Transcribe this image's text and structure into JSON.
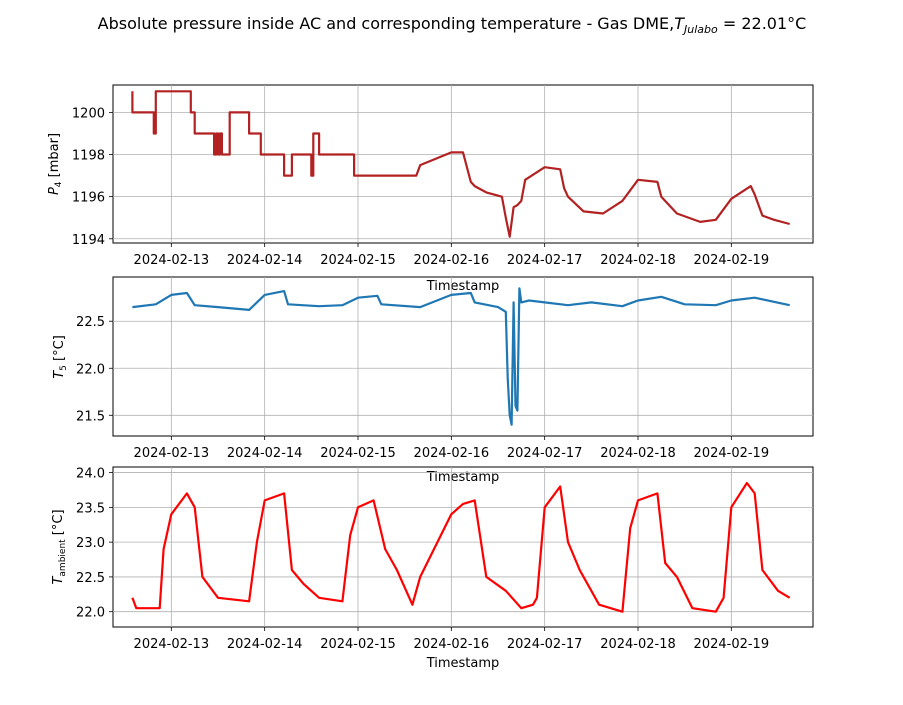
{
  "figure": {
    "title": "Absolute pressure inside AC and corresponding temperature - Gas DME,",
    "title_math_var": "T",
    "title_math_sub": "Julabo",
    "title_math_tail": " = 22.01°C"
  },
  "chart_data": [
    {
      "type": "line",
      "ylabel_var": "P",
      "ylabel_sub": "4",
      "ylabel_unit": " [mbar]",
      "xlabel": "Timestamp",
      "color": "#b22222",
      "grid": true,
      "ylim": [
        1193.8,
        1201.3
      ],
      "yticks": [
        1194,
        1196,
        1198,
        1200
      ],
      "xlim": [
        "2024-02-12 09:00",
        "2024-02-19 21:00"
      ],
      "xticks": [
        "2024-02-13",
        "2024-02-14",
        "2024-02-15",
        "2024-02-16",
        "2024-02-17",
        "2024-02-18",
        "2024-02-19"
      ],
      "series": [
        {
          "x": [
            "2024-02-12 14:00",
            "2024-02-12 14:00",
            "2024-02-12 14:05",
            "2024-02-12 14:05",
            "2024-02-12 19:30",
            "2024-02-12 19:30",
            "2024-02-12 20:00",
            "2024-02-12 20:00",
            "2024-02-13 05:00",
            "2024-02-13 05:00",
            "2024-02-13 06:00",
            "2024-02-13 06:00",
            "2024-02-13 11:00",
            "2024-02-13 11:00",
            "2024-02-13 11:30",
            "2024-02-13 11:30",
            "2024-02-13 12:00",
            "2024-02-13 12:00",
            "2024-02-13 12:30",
            "2024-02-13 12:30",
            "2024-02-13 13:00",
            "2024-02-13 13:00",
            "2024-02-13 14:00",
            "2024-02-13 14:00",
            "2024-02-13 15:00",
            "2024-02-13 15:00",
            "2024-02-13 20:00",
            "2024-02-13 20:00",
            "2024-02-13 23:00",
            "2024-02-13 23:00",
            "2024-02-14 05:00",
            "2024-02-14 05:00",
            "2024-02-14 06:00",
            "2024-02-14 06:00",
            "2024-02-14 07:00",
            "2024-02-14 07:00",
            "2024-02-14 12:00",
            "2024-02-14 12:00",
            "2024-02-14 12:30",
            "2024-02-14 12:30",
            "2024-02-14 13:00",
            "2024-02-14 13:00",
            "2024-02-14 14:00",
            "2024-02-14 14:00",
            "2024-02-14 23:00",
            "2024-02-14 23:00",
            "2024-02-15 00:00",
            "2024-02-15 00:00",
            "2024-02-15 05:00",
            "2024-02-15 05:00",
            "2024-02-15 06:00",
            "2024-02-15 06:00",
            "2024-02-15 14:00",
            "2024-02-15 15:00",
            "2024-02-15 15:00",
            "2024-02-15 16:00",
            "2024-02-16 00:00",
            "2024-02-16 03:00",
            "2024-02-16 05:00",
            "2024-02-16 06:00",
            "2024-02-16 09:00",
            "2024-02-16 13:00",
            "2024-02-16 14:00",
            "2024-02-16 15:00",
            "2024-02-16 16:00",
            "2024-02-16 17:00",
            "2024-02-16 18:00",
            "2024-02-16 19:00",
            "2024-02-17 00:00",
            "2024-02-17 04:00",
            "2024-02-17 05:00",
            "2024-02-17 06:00",
            "2024-02-17 10:00",
            "2024-02-17 15:00",
            "2024-02-17 20:00",
            "2024-02-18 00:00",
            "2024-02-18 05:00",
            "2024-02-18 06:00",
            "2024-02-18 10:00",
            "2024-02-18 16:00",
            "2024-02-18 20:00",
            "2024-02-19 00:00",
            "2024-02-19 05:00",
            "2024-02-19 06:00",
            "2024-02-19 08:00",
            "2024-02-19 11:00",
            "2024-02-19 15:00"
          ],
          "y": [
            1201,
            1200,
            1200,
            1200,
            1200,
            1199,
            1199,
            1201,
            1201,
            1200,
            1200,
            1199,
            1199,
            1198,
            1198,
            1199,
            1199,
            1198,
            1198,
            1199,
            1199,
            1198,
            1198,
            1198,
            1198,
            1200,
            1200,
            1199,
            1199,
            1198,
            1198,
            1197,
            1197,
            1197,
            1197,
            1198,
            1198,
            1197,
            1197,
            1199,
            1199,
            1199,
            1199,
            1198,
            1198,
            1197,
            1197,
            1197,
            1197,
            1197,
            1197,
            1197,
            1197,
            1197,
            1197,
            1197.5,
            1198.1,
            1198.1,
            1196.7,
            1196.5,
            1196.2,
            1196,
            1195,
            1194.1,
            1195.5,
            1195.6,
            1195.8,
            1196.8,
            1197.4,
            1197.3,
            1196.4,
            1196.0,
            1195.3,
            1195.2,
            1195.8,
            1196.8,
            1196.7,
            1196.0,
            1195.2,
            1194.8,
            1194.9,
            1195.9,
            1196.5,
            1196.1,
            1195.1,
            1194.9,
            1194.7
          ]
        }
      ]
    },
    {
      "type": "line",
      "ylabel_var": "T",
      "ylabel_sub": "5",
      "ylabel_unit": " [°C]",
      "xlabel": "Timestamp",
      "color": "#1f77b4",
      "grid": true,
      "ylim": [
        21.28,
        22.97
      ],
      "yticks": [
        21.5,
        22.0,
        22.5
      ],
      "xlim": [
        "2024-02-12 09:00",
        "2024-02-19 21:00"
      ],
      "xticks": [
        "2024-02-13",
        "2024-02-14",
        "2024-02-15",
        "2024-02-16",
        "2024-02-17",
        "2024-02-18",
        "2024-02-19"
      ],
      "series": [
        {
          "x": [
            "2024-02-12 14:00",
            "2024-02-12 20:00",
            "2024-02-13 00:00",
            "2024-02-13 04:00",
            "2024-02-13 06:00",
            "2024-02-13 12:00",
            "2024-02-13 20:00",
            "2024-02-14 00:00",
            "2024-02-14 05:00",
            "2024-02-14 06:00",
            "2024-02-14 14:00",
            "2024-02-14 20:00",
            "2024-02-15 00:00",
            "2024-02-15 05:00",
            "2024-02-15 06:00",
            "2024-02-15 16:00",
            "2024-02-16 00:00",
            "2024-02-16 05:00",
            "2024-02-16 06:00",
            "2024-02-16 12:00",
            "2024-02-16 14:00",
            "2024-02-16 14:30",
            "2024-02-16 15:00",
            "2024-02-16 15:30",
            "2024-02-16 16:00",
            "2024-02-16 16:30",
            "2024-02-16 17:00",
            "2024-02-16 17:30",
            "2024-02-16 18:00",
            "2024-02-16 20:00",
            "2024-02-17 00:00",
            "2024-02-17 06:00",
            "2024-02-17 12:00",
            "2024-02-17 20:00",
            "2024-02-18 00:00",
            "2024-02-18 06:00",
            "2024-02-18 12:00",
            "2024-02-18 20:00",
            "2024-02-19 00:00",
            "2024-02-19 06:00",
            "2024-02-19 15:00"
          ],
          "y": [
            22.65,
            22.68,
            22.78,
            22.8,
            22.67,
            22.65,
            22.62,
            22.78,
            22.82,
            22.68,
            22.66,
            22.67,
            22.75,
            22.77,
            22.68,
            22.65,
            22.78,
            22.8,
            22.7,
            22.65,
            22.6,
            21.9,
            21.5,
            21.4,
            22.7,
            21.6,
            21.55,
            22.85,
            22.7,
            22.72,
            22.7,
            22.67,
            22.7,
            22.66,
            22.72,
            22.76,
            22.68,
            22.67,
            22.72,
            22.75,
            22.67
          ]
        }
      ]
    },
    {
      "type": "line",
      "ylabel_var": "T",
      "ylabel_sub": "ambient",
      "ylabel_unit": " [°C]",
      "xlabel": "Timestamp",
      "color": "#ff0000",
      "grid": true,
      "ylim": [
        21.78,
        24.08
      ],
      "yticks": [
        22.0,
        22.5,
        23.0,
        23.5,
        24.0
      ],
      "xlim": [
        "2024-02-12 09:00",
        "2024-02-19 21:00"
      ],
      "xticks": [
        "2024-02-13",
        "2024-02-14",
        "2024-02-15",
        "2024-02-16",
        "2024-02-17",
        "2024-02-18",
        "2024-02-19"
      ],
      "series": [
        {
          "x": [
            "2024-02-12 14:00",
            "2024-02-12 15:00",
            "2024-02-12 21:00",
            "2024-02-12 22:00",
            "2024-02-13 00:00",
            "2024-02-13 04:00",
            "2024-02-13 06:00",
            "2024-02-13 08:00",
            "2024-02-13 12:00",
            "2024-02-13 20:00",
            "2024-02-13 22:00",
            "2024-02-14 00:00",
            "2024-02-14 05:00",
            "2024-02-14 07:00",
            "2024-02-14 10:00",
            "2024-02-14 14:00",
            "2024-02-14 20:00",
            "2024-02-14 22:00",
            "2024-02-15 00:00",
            "2024-02-15 04:00",
            "2024-02-15 07:00",
            "2024-02-15 10:00",
            "2024-02-15 14:00",
            "2024-02-15 16:00",
            "2024-02-16 00:00",
            "2024-02-16 03:00",
            "2024-02-16 06:00",
            "2024-02-16 09:00",
            "2024-02-16 14:00",
            "2024-02-16 18:00",
            "2024-02-16 21:00",
            "2024-02-16 22:00",
            "2024-02-17 00:00",
            "2024-02-17 04:00",
            "2024-02-17 06:00",
            "2024-02-17 09:00",
            "2024-02-17 14:00",
            "2024-02-17 20:00",
            "2024-02-17 22:00",
            "2024-02-18 00:00",
            "2024-02-18 05:00",
            "2024-02-18 07:00",
            "2024-02-18 10:00",
            "2024-02-18 14:00",
            "2024-02-18 20:00",
            "2024-02-18 22:00",
            "2024-02-19 00:00",
            "2024-02-19 04:00",
            "2024-02-19 06:00",
            "2024-02-19 08:00",
            "2024-02-19 12:00",
            "2024-02-19 15:00"
          ],
          "y": [
            22.2,
            22.05,
            22.05,
            22.9,
            23.4,
            23.7,
            23.5,
            22.5,
            22.2,
            22.15,
            23.0,
            23.6,
            23.7,
            22.6,
            22.4,
            22.2,
            22.15,
            23.1,
            23.5,
            23.6,
            22.9,
            22.6,
            22.1,
            22.5,
            23.4,
            23.55,
            23.6,
            22.5,
            22.3,
            22.05,
            22.1,
            22.2,
            23.5,
            23.8,
            23.0,
            22.6,
            22.1,
            22.0,
            23.2,
            23.6,
            23.7,
            22.7,
            22.5,
            22.05,
            22.0,
            22.2,
            23.5,
            23.85,
            23.7,
            22.6,
            22.3,
            22.2
          ]
        }
      ]
    }
  ]
}
